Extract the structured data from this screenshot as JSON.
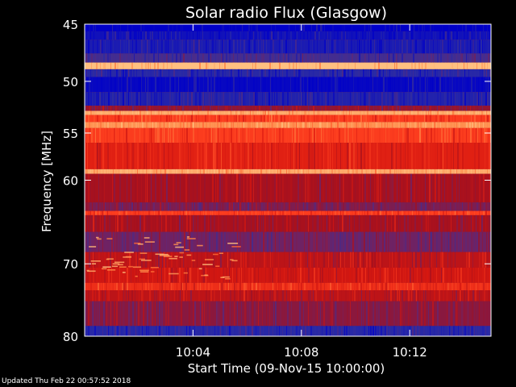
{
  "chart_data": {
    "type": "heatmap",
    "title": "Solar radio Flux (Glasgow)",
    "ylabel": "Frequency [MHz]",
    "xlabel": "Start Time (09-Nov-15 10:00:00)",
    "ylim": [
      45,
      80
    ],
    "yscale": "log-like",
    "ytick_values": [
      45,
      50,
      55,
      60,
      70,
      80
    ],
    "ytick_labels": [
      "45",
      "50",
      "55",
      "60",
      "70",
      "80"
    ],
    "xlim_minutes": [
      0,
      15
    ],
    "xtick_minutes": [
      4,
      8,
      12
    ],
    "xtick_labels": [
      "10:04",
      "10:08",
      "10:12"
    ],
    "colormap": [
      "#0000c8",
      "#3030a0",
      "#602878",
      "#a01020",
      "#d81810",
      "#ff4020",
      "#ff8040",
      "#ffc080"
    ],
    "bands": [
      {
        "from": 45.0,
        "to": 45.6,
        "level": 0.0
      },
      {
        "from": 45.6,
        "to": 46.3,
        "level": 0.05
      },
      {
        "from": 46.3,
        "to": 47.5,
        "level": 0.08
      },
      {
        "from": 47.5,
        "to": 48.3,
        "level": 0.2
      },
      {
        "from": 48.3,
        "to": 48.9,
        "level": 1.0
      },
      {
        "from": 48.9,
        "to": 49.6,
        "level": 0.12
      },
      {
        "from": 49.6,
        "to": 51.0,
        "level": 0.02
      },
      {
        "from": 51.0,
        "to": 52.3,
        "level": 0.1
      },
      {
        "from": 52.3,
        "to": 52.8,
        "level": 0.4
      },
      {
        "from": 52.8,
        "to": 53.2,
        "level": 0.95
      },
      {
        "from": 53.2,
        "to": 53.9,
        "level": 0.7
      },
      {
        "from": 53.9,
        "to": 54.5,
        "level": 0.9
      },
      {
        "from": 54.5,
        "to": 56.0,
        "level": 0.7
      },
      {
        "from": 56.0,
        "to": 58.8,
        "level": 0.6
      },
      {
        "from": 58.8,
        "to": 59.3,
        "level": 0.95
      },
      {
        "from": 59.3,
        "to": 62.5,
        "level": 0.45
      },
      {
        "from": 62.5,
        "to": 63.5,
        "level": 0.35
      },
      {
        "from": 63.5,
        "to": 64.0,
        "level": 0.7
      },
      {
        "from": 64.0,
        "to": 66.0,
        "level": 0.45
      },
      {
        "from": 66.0,
        "to": 68.5,
        "level": 0.32
      },
      {
        "from": 68.5,
        "to": 70.5,
        "level": 0.5
      },
      {
        "from": 70.5,
        "to": 72.5,
        "level": 0.55
      },
      {
        "from": 72.5,
        "to": 73.5,
        "level": 0.65
      },
      {
        "from": 73.5,
        "to": 75.0,
        "level": 0.5
      },
      {
        "from": 75.0,
        "to": 78.5,
        "level": 0.38
      },
      {
        "from": 78.5,
        "to": 80.0,
        "level": 0.12
      }
    ]
  },
  "footer": {
    "updated": "Updated Thu Feb 22 00:57:52 2018"
  }
}
